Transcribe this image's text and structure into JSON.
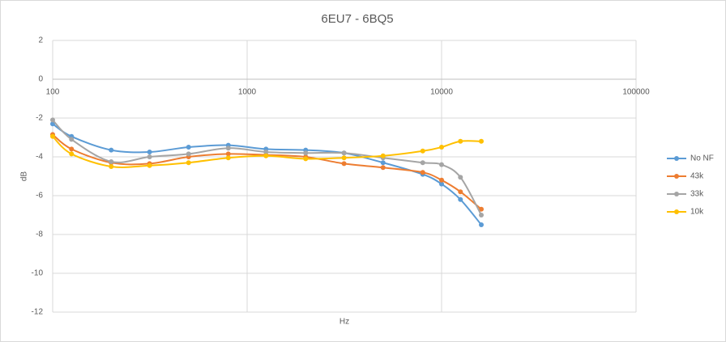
{
  "chart_data": {
    "type": "line",
    "title": "6EU7 - 6BQ5",
    "x_label": "Hz",
    "y_label": "dB",
    "x_scale": "log",
    "xlim": [
      100,
      100000
    ],
    "xticks": [
      100,
      1000,
      10000,
      100000
    ],
    "ylim": [
      -12,
      2
    ],
    "yticks": [
      2,
      0,
      -2,
      -4,
      -6,
      -8,
      -10,
      -12
    ],
    "grid": true,
    "legend": "right",
    "x": [
      100,
      125,
      200,
      315,
      500,
      800,
      1250,
      2000,
      3150,
      5000,
      8000,
      10000,
      12500,
      16000
    ],
    "series": [
      {
        "name": "No NF",
        "color": "#5b9bd5",
        "values": [
          -2.3,
          -2.95,
          -3.65,
          -3.75,
          -3.5,
          -3.4,
          -3.6,
          -3.65,
          -3.8,
          -4.3,
          -4.9,
          -5.4,
          -6.2,
          -7.5
        ]
      },
      {
        "name": "43k",
        "color": "#ed7d31",
        "values": [
          -2.85,
          -3.6,
          -4.3,
          -4.35,
          -4.0,
          -3.85,
          -3.9,
          -4.0,
          -4.35,
          -4.55,
          -4.8,
          -5.2,
          -5.8,
          -6.7
        ]
      },
      {
        "name": "33k",
        "color": "#a5a5a5",
        "values": [
          -2.1,
          -3.1,
          -4.25,
          -4.0,
          -3.85,
          -3.55,
          -3.75,
          -3.8,
          -3.8,
          -4.05,
          -4.3,
          -4.4,
          -5.05,
          -7.0
        ]
      },
      {
        "name": "10k",
        "color": "#ffc000",
        "values": [
          -2.95,
          -3.85,
          -4.5,
          -4.45,
          -4.3,
          -4.05,
          -3.95,
          -4.1,
          -4.05,
          -3.95,
          -3.7,
          -3.5,
          -3.2,
          -3.2
        ]
      }
    ]
  }
}
